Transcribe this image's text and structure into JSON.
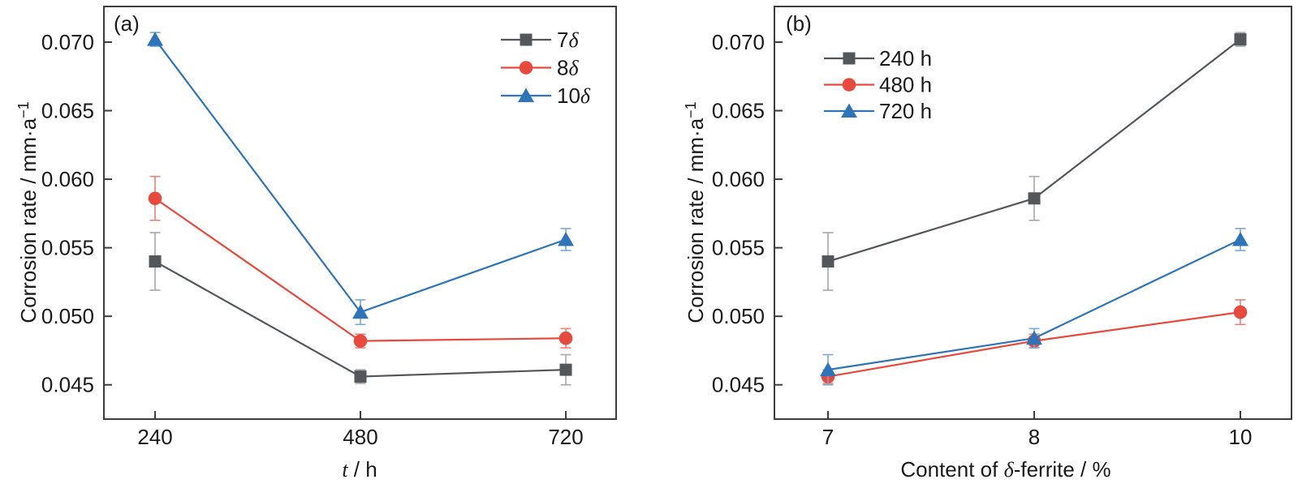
{
  "figure": {
    "background": "#ffffff",
    "text_color": "#1a1a1a",
    "axis_color": "#3d3d3d"
  },
  "chart_data": [
    {
      "type": "line",
      "panel_label": "(a)",
      "title": "",
      "xlabel": "t / h",
      "xlabel_rich": [
        {
          "t": "t",
          "i": true
        },
        {
          "t": " / h"
        }
      ],
      "ylabel": "Corrosion rate / mm·a−1",
      "ylabel_rich": [
        {
          "t": "Corrosion rate / mm·a"
        },
        {
          "t": "−1",
          "sup": true
        }
      ],
      "categories": [
        "240",
        "480",
        "720"
      ],
      "x_values": [
        240,
        480,
        720
      ],
      "ylim": [
        0.0425,
        0.0726
      ],
      "yticks": [
        0.045,
        0.05,
        0.055,
        0.06,
        0.065,
        0.07
      ],
      "ytick_decimals": 3,
      "grid": false,
      "legend_position": "top-right",
      "series": [
        {
          "name": "7δ",
          "name_rich": [
            {
              "t": "7"
            },
            {
              "t": "δ",
              "i": true
            }
          ],
          "marker": "square",
          "color": "#54575a",
          "error_color": "#a7a7a7",
          "values": [
            0.054,
            0.0456,
            0.0461
          ],
          "errors": [
            0.0021,
            0.0005,
            0.0011
          ]
        },
        {
          "name": "8δ",
          "name_rich": [
            {
              "t": "8"
            },
            {
              "t": "δ",
              "i": true
            }
          ],
          "marker": "circle",
          "color": "#e8493d",
          "error_color": "#ed8077",
          "values": [
            0.0586,
            0.0482,
            0.0484
          ],
          "errors": [
            0.0016,
            0.0005,
            0.0007
          ]
        },
        {
          "name": "10δ",
          "name_rich": [
            {
              "t": "10"
            },
            {
              "t": "δ",
              "i": true
            }
          ],
          "marker": "triangle",
          "color": "#2e74b8",
          "error_color": "#7ba7d4",
          "values": [
            0.0702,
            0.0503,
            0.0556
          ],
          "errors": [
            0.0005,
            0.0009,
            0.0008
          ]
        }
      ]
    },
    {
      "type": "line",
      "panel_label": "(b)",
      "title": "",
      "xlabel": "Content of δ-ferrite / %",
      "xlabel_rich": [
        {
          "t": "Content of "
        },
        {
          "t": "δ",
          "i": true
        },
        {
          "t": "-ferrite / %"
        }
      ],
      "ylabel": "Corrosion rate / mm·a−1",
      "ylabel_rich": [
        {
          "t": "Corrosion rate / mm·a"
        },
        {
          "t": "−1",
          "sup": true
        }
      ],
      "categories": [
        "7",
        "8",
        "10"
      ],
      "x_values": [
        7,
        8,
        10
      ],
      "ylim": [
        0.0425,
        0.0726
      ],
      "yticks": [
        0.045,
        0.05,
        0.055,
        0.06,
        0.065,
        0.07
      ],
      "ytick_decimals": 3,
      "grid": false,
      "legend_position": "top-left",
      "series": [
        {
          "name": "240 h",
          "name_rich": [
            {
              "t": "240 h"
            }
          ],
          "marker": "square",
          "color": "#54575a",
          "error_color": "#a7a7a7",
          "values": [
            0.054,
            0.0586,
            0.0702
          ],
          "errors": [
            0.0021,
            0.0016,
            0.0005
          ]
        },
        {
          "name": "480 h",
          "name_rich": [
            {
              "t": "480 h"
            }
          ],
          "marker": "circle",
          "color": "#e8493d",
          "error_color": "#ed8077",
          "values": [
            0.0456,
            0.0482,
            0.0503
          ],
          "errors": [
            0.0005,
            0.0005,
            0.0009
          ]
        },
        {
          "name": "720 h",
          "name_rich": [
            {
              "t": "720 h"
            }
          ],
          "marker": "triangle",
          "color": "#2e74b8",
          "error_color": "#7ba7d4",
          "values": [
            0.0461,
            0.0484,
            0.0556
          ],
          "errors": [
            0.0011,
            0.0007,
            0.0008
          ]
        }
      ]
    }
  ]
}
